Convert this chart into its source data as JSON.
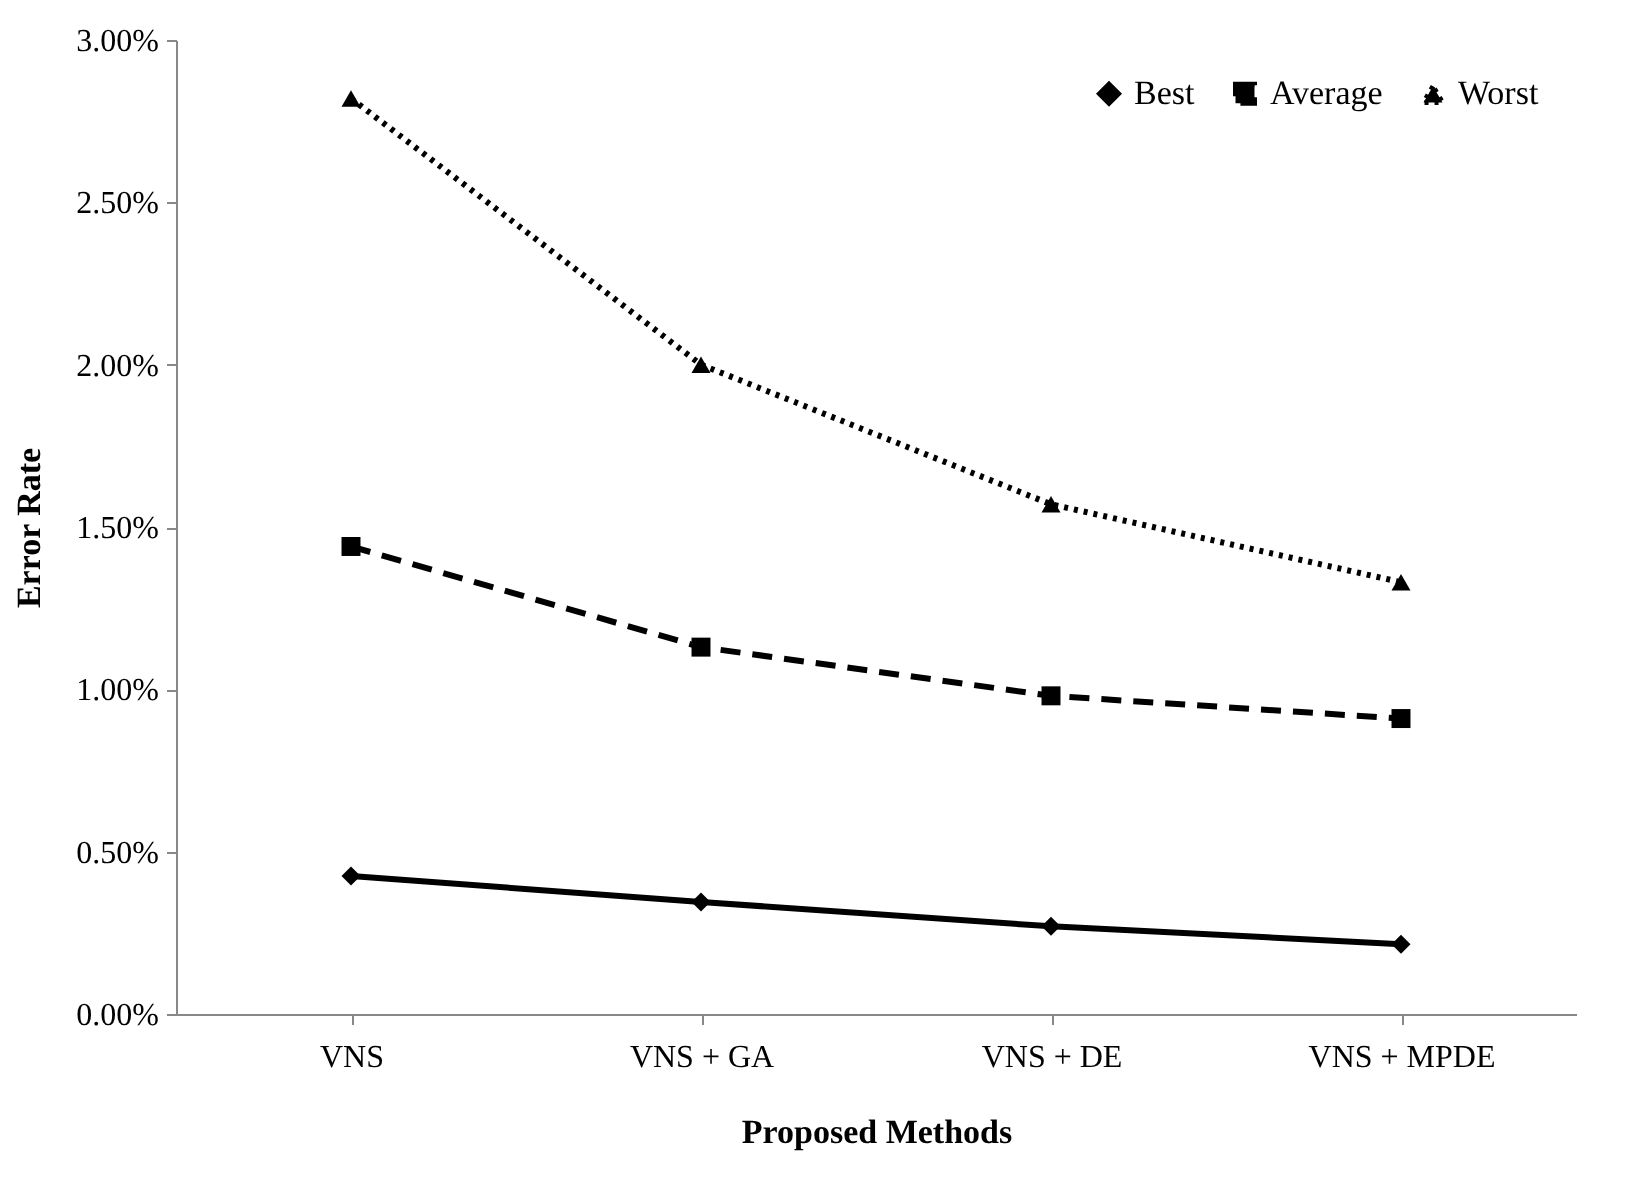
{
  "chart_data": {
    "type": "line",
    "xlabel": "Proposed Methods",
    "ylabel": "Error Rate",
    "categories": [
      "VNS",
      "VNS + GA",
      "VNS + DE",
      "VNS + MPDE"
    ],
    "series": [
      {
        "name": "Best",
        "color": "#000000",
        "marker": "diamond",
        "line_style": "solid",
        "values": [
          0.425,
          0.345,
          0.27,
          0.215
        ]
      },
      {
        "name": "Average",
        "color": "#000000",
        "marker": "square",
        "line_style": "dashed",
        "values": [
          1.44,
          1.13,
          0.98,
          0.91
        ]
      },
      {
        "name": "Worst",
        "color": "#000000",
        "marker": "triangle",
        "line_style": "dotted",
        "values": [
          2.82,
          2.0,
          1.57,
          1.33
        ]
      }
    ],
    "ylim": [
      0,
      3
    ],
    "yticks": [
      {
        "value": 0,
        "label": "0.00%"
      },
      {
        "value": 0.5,
        "label": "0.50%"
      },
      {
        "value": 1,
        "label": "1.00%"
      },
      {
        "value": 1.5,
        "label": "1.50%"
      },
      {
        "value": 2,
        "label": "2.00%"
      },
      {
        "value": 2.5,
        "label": "2.50%"
      },
      {
        "value": 3,
        "label": "3.00%"
      }
    ],
    "legend": "top right"
  }
}
